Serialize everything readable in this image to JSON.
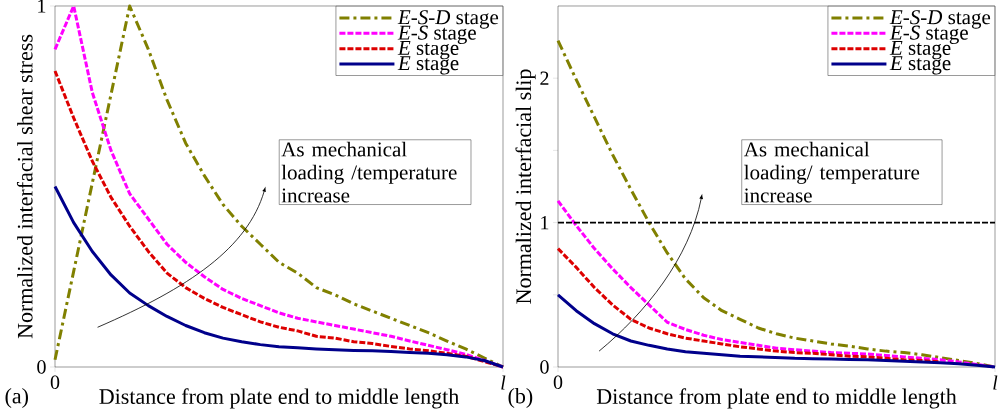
{
  "chart_data": [
    {
      "type": "line",
      "ylabel": "Normalized interfacial shear stress",
      "xlabel": "Distance from plate end to middle length",
      "categories": [
        "0",
        null,
        null,
        null,
        null,
        null,
        null,
        null,
        null,
        null,
        null,
        null,
        null,
        null,
        null,
        null,
        null,
        null,
        null,
        null,
        null,
        null,
        null,
        null,
        "*l*"
      ],
      "ylim": [
        0,
        1
      ],
      "yticks": [
        0,
        1
      ],
      "legend": "top right",
      "grid": false,
      "annotations": [
        "As mechanical loading /temperature increase",
        "(a)"
      ],
      "series": [
        {
          "name": "*E*-*S*-*D* stage",
          "color": "#808000",
          "line_style": "dashdot",
          "values": [
            0.02,
            0.265,
            0.51,
            0.755,
            1.0,
            0.88,
            0.74,
            0.62,
            0.53,
            0.45,
            0.39,
            0.34,
            0.29,
            0.26,
            0.22,
            0.2,
            0.175,
            0.155,
            0.135,
            0.115,
            0.095,
            0.072,
            0.05,
            0.025,
            0
          ]
        },
        {
          "name": "*E*-*S* stage",
          "color": "#ff00ff",
          "line_style": "dashed",
          "values": [
            0.88,
            1.0,
            0.76,
            0.6,
            0.48,
            0.41,
            0.34,
            0.29,
            0.25,
            0.215,
            0.19,
            0.17,
            0.15,
            0.135,
            0.125,
            0.115,
            0.105,
            0.095,
            0.085,
            0.072,
            0.06,
            0.048,
            0.035,
            0.018,
            0
          ]
        },
        {
          "name": "*E* stage",
          "color": "#dd0000",
          "line_style": "dashed",
          "values": [
            0.82,
            0.69,
            0.57,
            0.47,
            0.39,
            0.32,
            0.26,
            0.22,
            0.19,
            0.165,
            0.145,
            0.125,
            0.11,
            0.1,
            0.085,
            0.08,
            0.07,
            0.065,
            0.057,
            0.05,
            0.045,
            0.038,
            0.03,
            0.015,
            0
          ]
        },
        {
          "name": "*E* stage",
          "color": "#00008b",
          "line_style": "solid",
          "values": [
            0.5,
            0.4,
            0.32,
            0.255,
            0.205,
            0.17,
            0.14,
            0.115,
            0.095,
            0.08,
            0.07,
            0.062,
            0.056,
            0.053,
            0.05,
            0.048,
            0.046,
            0.045,
            0.043,
            0.04,
            0.038,
            0.034,
            0.028,
            0.018,
            0
          ]
        }
      ]
    },
    {
      "type": "line",
      "ylabel": "Normalized interfacial slip",
      "xlabel": "Distance from plate end to middle length",
      "categories": [
        "0",
        null,
        null,
        null,
        null,
        null,
        null,
        null,
        null,
        null,
        null,
        null,
        null,
        null,
        null,
        null,
        null,
        null,
        null,
        null,
        null,
        null,
        null,
        null,
        "*l*"
      ],
      "ylim": [
        0,
        2.5
      ],
      "yticks": [
        0,
        {
          "value": 0.5,
          "label": null
        },
        1,
        {
          "value": 1.5,
          "label": null
        },
        2
      ],
      "legend": "top right",
      "grid": false,
      "ref_lines": [
        {
          "axis": "y",
          "value": 1,
          "color": "#000000",
          "line_style": "dashed"
        }
      ],
      "annotations": [
        "As mechanical loading/ temperature increase",
        "(b)"
      ],
      "series": [
        {
          "name": "*E*-*S*-*D* stage",
          "color": "#808000",
          "line_style": "dashdot",
          "values": [
            2.26,
            1.99,
            1.73,
            1.47,
            1.23,
            1.0,
            0.79,
            0.61,
            0.48,
            0.39,
            0.33,
            0.27,
            0.23,
            0.2,
            0.18,
            0.16,
            0.145,
            0.125,
            0.11,
            0.1,
            0.085,
            0.065,
            0.045,
            0.025,
            0
          ]
        },
        {
          "name": "*E*-*S* stage",
          "color": "#ff00ff",
          "line_style": "dashed",
          "values": [
            1.15,
            0.98,
            0.82,
            0.68,
            0.55,
            0.43,
            0.31,
            0.26,
            0.22,
            0.19,
            0.17,
            0.15,
            0.13,
            0.12,
            0.11,
            0.1,
            0.095,
            0.09,
            0.08,
            0.07,
            0.06,
            0.05,
            0.035,
            0.018,
            0
          ]
        },
        {
          "name": "*E* stage",
          "color": "#dd0000",
          "line_style": "dashed",
          "values": [
            0.82,
            0.69,
            0.55,
            0.43,
            0.33,
            0.27,
            0.23,
            0.2,
            0.18,
            0.16,
            0.14,
            0.125,
            0.11,
            0.1,
            0.095,
            0.085,
            0.075,
            0.07,
            0.06,
            0.05,
            0.045,
            0.035,
            null,
            null,
            null
          ]
        },
        {
          "name": "*E* stage",
          "color": "#00008b",
          "line_style": "solid",
          "values": [
            0.5,
            0.39,
            0.3,
            0.23,
            0.18,
            0.15,
            0.125,
            0.105,
            0.095,
            0.085,
            0.075,
            0.07,
            0.065,
            0.06,
            0.058,
            0.055,
            0.052,
            0.05,
            0.045,
            0.04,
            0.035,
            0.03,
            0.022,
            0.012,
            0
          ]
        }
      ]
    }
  ]
}
